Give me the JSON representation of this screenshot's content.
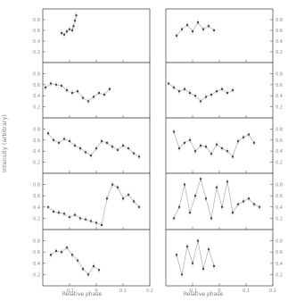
{
  "figure": {
    "ylabel": "Intensity (arbitrary)",
    "xlabel_left": "Relative phase",
    "xlabel_right": "Relative phase"
  },
  "chart_data": [
    {
      "type": "scatter",
      "panel": "left-1",
      "xlim": [
        -0.2,
        0.2
      ],
      "ylim": [
        0,
        1
      ],
      "x_ticks": [
        "-0.1",
        "0",
        "0.1",
        "0.2"
      ],
      "y_ticks": [
        "0.8",
        "0.6",
        "0.4",
        "0.2"
      ],
      "series": [
        {
          "x": [
            -0.13,
            -0.12,
            -0.11,
            -0.1,
            -0.09,
            -0.085,
            -0.08,
            -0.075
          ],
          "y": [
            0.55,
            0.52,
            0.58,
            0.62,
            0.6,
            0.68,
            0.78,
            0.88
          ]
        }
      ]
    },
    {
      "type": "scatter",
      "panel": "left-2",
      "xlim": [
        -0.2,
        0.2
      ],
      "ylim": [
        0,
        1
      ],
      "x_ticks": [
        "-0.1",
        "0",
        "0.1",
        "0.2"
      ],
      "y_ticks": [
        "0.8",
        "0.6",
        "0.4",
        "0.2"
      ],
      "series": [
        {
          "x": [
            -0.19,
            -0.17,
            -0.15,
            -0.13,
            -0.11,
            -0.09,
            -0.07,
            -0.05,
            -0.03,
            -0.01,
            0.01,
            0.03,
            0.05
          ],
          "y": [
            0.55,
            0.62,
            0.6,
            0.58,
            0.5,
            0.45,
            0.48,
            0.36,
            0.3,
            0.38,
            0.45,
            0.42,
            0.52
          ]
        }
      ]
    },
    {
      "type": "scatter",
      "panel": "left-3",
      "xlim": [
        -0.2,
        0.2
      ],
      "ylim": [
        0,
        1
      ],
      "x_ticks": [
        "-0.1",
        "0",
        "0.1",
        "0.2"
      ],
      "y_ticks": [
        "0.8",
        "0.6",
        "0.4",
        "0.2"
      ],
      "series": [
        {
          "x": [
            -0.18,
            -0.16,
            -0.14,
            -0.12,
            -0.1,
            -0.08,
            -0.06,
            -0.04,
            -0.02,
            0.0,
            0.02,
            0.04,
            0.06,
            0.08,
            0.1,
            0.12,
            0.14,
            0.16
          ],
          "y": [
            0.72,
            0.6,
            0.55,
            0.62,
            0.58,
            0.5,
            0.45,
            0.38,
            0.32,
            0.45,
            0.58,
            0.55,
            0.48,
            0.42,
            0.5,
            0.45,
            0.36,
            0.3
          ]
        }
      ]
    },
    {
      "type": "scatter",
      "panel": "left-4",
      "xlim": [
        -0.2,
        0.2
      ],
      "ylim": [
        0,
        1
      ],
      "x_ticks": [
        "-0.1",
        "0",
        "0.1",
        "0.2"
      ],
      "y_ticks": [
        "0.8",
        "0.6",
        "0.4",
        "0.2"
      ],
      "series": [
        {
          "x": [
            -0.18,
            -0.16,
            -0.14,
            -0.12,
            -0.1,
            -0.08,
            -0.06,
            -0.04,
            -0.02,
            0.0,
            0.02,
            0.04,
            0.06,
            0.08,
            0.1,
            0.12,
            0.14,
            0.16
          ],
          "y": [
            0.4,
            0.32,
            0.3,
            0.28,
            0.22,
            0.26,
            0.2,
            0.18,
            0.15,
            0.12,
            0.08,
            0.55,
            0.8,
            0.75,
            0.55,
            0.62,
            0.5,
            0.4
          ]
        }
      ]
    },
    {
      "type": "scatter",
      "panel": "left-5",
      "xlim": [
        -0.2,
        0.2
      ],
      "ylim": [
        0,
        1
      ],
      "x_ticks": [
        "-0.1",
        "0",
        "0.1",
        "0.2"
      ],
      "y_ticks": [
        "0.8",
        "0.6",
        "0.4",
        "0.2"
      ],
      "series": [
        {
          "x": [
            -0.17,
            -0.15,
            -0.13,
            -0.11,
            -0.09,
            -0.07,
            -0.05,
            -0.03,
            -0.01,
            0.01
          ],
          "y": [
            0.55,
            0.62,
            0.6,
            0.68,
            0.55,
            0.45,
            0.3,
            0.2,
            0.35,
            0.28
          ]
        }
      ]
    },
    {
      "type": "scatter",
      "panel": "right-1",
      "xlim": [
        -0.2,
        0.2
      ],
      "ylim": [
        0,
        1
      ],
      "x_ticks": [
        "-0.1",
        "0",
        "0.1",
        "0.2"
      ],
      "y_ticks": [
        "0.8",
        "0.6",
        "0.4",
        "0.2"
      ],
      "series": [
        {
          "x": [
            -0.16,
            -0.14,
            -0.12,
            -0.1,
            -0.08,
            -0.06,
            -0.04,
            -0.02
          ],
          "y": [
            0.5,
            0.62,
            0.7,
            0.58,
            0.75,
            0.62,
            0.68,
            0.6
          ]
        }
      ]
    },
    {
      "type": "scatter",
      "panel": "right-2",
      "xlim": [
        -0.2,
        0.2
      ],
      "ylim": [
        0,
        1
      ],
      "x_ticks": [
        "-0.1",
        "0",
        "0.1",
        "0.2"
      ],
      "y_ticks": [
        "0.8",
        "0.6",
        "0.4",
        "0.2"
      ],
      "series": [
        {
          "x": [
            -0.19,
            -0.17,
            -0.15,
            -0.13,
            -0.11,
            -0.09,
            -0.07,
            -0.05,
            -0.03,
            -0.01,
            0.01,
            0.03,
            0.05
          ],
          "y": [
            0.62,
            0.55,
            0.48,
            0.52,
            0.45,
            0.4,
            0.3,
            0.38,
            0.42,
            0.48,
            0.52,
            0.45,
            0.5
          ]
        }
      ]
    },
    {
      "type": "scatter",
      "panel": "right-3",
      "xlim": [
        -0.2,
        0.2
      ],
      "ylim": [
        0,
        1
      ],
      "x_ticks": [
        "-0.1",
        "0",
        "0.1",
        "0.2"
      ],
      "y_ticks": [
        "0.8",
        "0.6",
        "0.4",
        "0.2"
      ],
      "series": [
        {
          "x": [
            -0.17,
            -0.15,
            -0.13,
            -0.11,
            -0.09,
            -0.07,
            -0.05,
            -0.03,
            -0.01,
            0.01,
            0.03,
            0.05,
            0.07,
            0.09,
            0.11,
            0.13
          ],
          "y": [
            0.75,
            0.45,
            0.55,
            0.6,
            0.4,
            0.5,
            0.48,
            0.35,
            0.52,
            0.45,
            0.4,
            0.3,
            0.58,
            0.65,
            0.7,
            0.55
          ]
        }
      ]
    },
    {
      "type": "scatter",
      "panel": "right-4",
      "xlim": [
        -0.2,
        0.2
      ],
      "ylim": [
        0,
        1
      ],
      "x_ticks": [
        "-0.1",
        "0",
        "0.1",
        "0.2"
      ],
      "y_ticks": [
        "0.8",
        "0.6",
        "0.4",
        "0.2"
      ],
      "series": [
        {
          "x": [
            -0.17,
            -0.15,
            -0.13,
            -0.11,
            -0.09,
            -0.07,
            -0.05,
            -0.03,
            -0.01,
            0.01,
            0.03,
            0.05,
            0.07,
            0.09,
            0.11,
            0.13,
            0.15
          ],
          "y": [
            0.2,
            0.4,
            0.8,
            0.3,
            0.6,
            0.9,
            0.55,
            0.2,
            0.75,
            0.4,
            0.85,
            0.3,
            0.45,
            0.5,
            0.55,
            0.45,
            0.4
          ]
        }
      ]
    },
    {
      "type": "scatter",
      "panel": "right-5",
      "xlim": [
        -0.2,
        0.2
      ],
      "ylim": [
        0,
        1
      ],
      "x_ticks": [
        "-0.1",
        "0",
        "0.1",
        "0.2"
      ],
      "y_ticks": [
        "0.8",
        "0.6",
        "0.4",
        "0.2"
      ],
      "series": [
        {
          "x": [
            -0.16,
            -0.14,
            -0.12,
            -0.1,
            -0.08,
            -0.06,
            -0.04,
            -0.02
          ],
          "y": [
            0.55,
            0.2,
            0.7,
            0.4,
            0.8,
            0.3,
            0.65,
            0.35
          ]
        }
      ]
    }
  ]
}
